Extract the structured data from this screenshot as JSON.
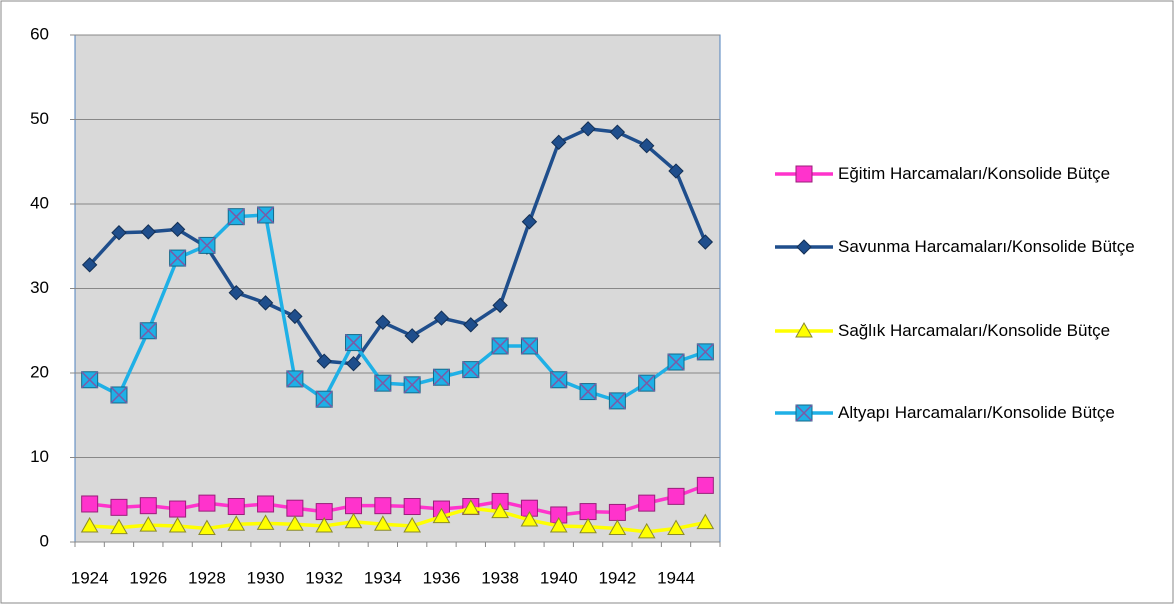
{
  "chart_data": {
    "type": "line",
    "categories": [
      "1924",
      null,
      "1926",
      null,
      "1928",
      null,
      "1930",
      null,
      "1932",
      null,
      "1934",
      null,
      "1936",
      null,
      "1938",
      null,
      "1940",
      null,
      "1942",
      null,
      "1944",
      null
    ],
    "series": [
      {
        "name": "Eğitim Harcamaları/Konsolide Bütçe",
        "color": "#ff33cc",
        "marker": "square",
        "values": [
          4.5,
          4.1,
          4.3,
          3.9,
          4.6,
          4.2,
          4.5,
          4.0,
          3.6,
          4.3,
          4.3,
          4.2,
          3.9,
          4.2,
          4.8,
          4.0,
          3.2,
          3.6,
          3.5,
          4.6,
          5.4,
          6.7
        ]
      },
      {
        "name": "Savunma Harcamaları/Konsolide Bütçe",
        "color": "#1f4e8c",
        "marker": "diamond",
        "values": [
          32.8,
          36.6,
          36.7,
          37.0,
          34.9,
          29.5,
          28.3,
          26.7,
          21.4,
          21.1,
          26.0,
          24.4,
          26.5,
          25.7,
          28.0,
          37.9,
          47.3,
          48.9,
          48.5,
          46.9,
          43.9,
          35.5
        ]
      },
      {
        "name": "Sağlık Harcamaları/Konsolide Bütçe",
        "color": "#ffff00",
        "marker": "triangle",
        "values": [
          1.9,
          1.7,
          2.0,
          1.9,
          1.6,
          2.1,
          2.2,
          2.1,
          1.9,
          2.4,
          2.1,
          1.9,
          3.0,
          4.0,
          3.6,
          2.6,
          1.9,
          1.8,
          1.6,
          1.2,
          1.6,
          2.3
        ]
      },
      {
        "name": "Altyapı Harcamaları/Konsolide Bütçe",
        "color": "#1fb0e6",
        "marker": "xsquare",
        "values": [
          19.2,
          17.4,
          25.0,
          33.6,
          35.1,
          38.5,
          38.7,
          19.3,
          16.9,
          23.6,
          18.8,
          18.6,
          19.5,
          20.4,
          23.2,
          23.2,
          19.2,
          17.8,
          16.7,
          18.8,
          21.3,
          22.5
        ]
      }
    ],
    "ylim": [
      0,
      60
    ],
    "yticks": [
      0,
      10,
      20,
      30,
      40,
      50,
      60
    ],
    "grid": true,
    "legend": "right"
  }
}
